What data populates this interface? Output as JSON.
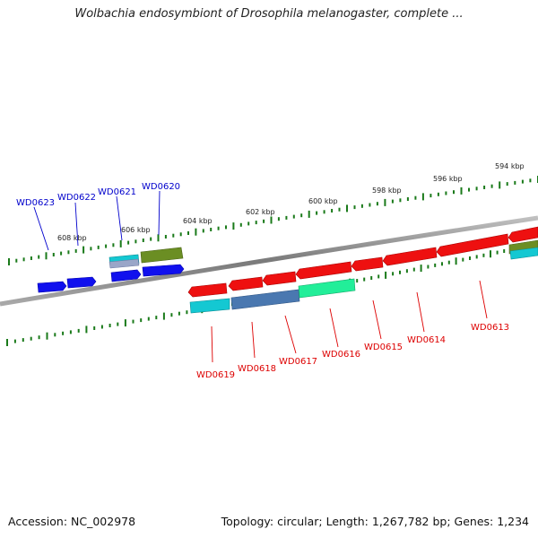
{
  "title": "Wolbachia endosymbiont of Drosophila melanogaster, complete ...",
  "footer": {
    "accession": "Accession: NC_002978",
    "summary": "Topology: circular; Length: 1,267,782 bp; Genes: 1,234"
  },
  "colors": {
    "backbone": "#808080",
    "tick": "#1a7a1a",
    "forward_label": "#0000cc",
    "reverse_label": "#dd0000",
    "blue_gene": "#1010ee",
    "red_gene": "#ee1010",
    "cyan_gene": "#14c8d2",
    "olive_gene": "#6b8e23",
    "steel_gene": "#4a78b0",
    "spring_gene": "#22ee99"
  },
  "kbp_labels": [
    "608 kbp",
    "606 kbp",
    "604 kbp",
    "602 kbp",
    "600 kbp",
    "598 kbp",
    "596 kbp",
    "594 kbp"
  ],
  "forward_gene_labels": [
    "WD0623",
    "WD0622",
    "WD0621",
    "WD0620"
  ],
  "reverse_gene_labels": [
    "WD0619",
    "WD0618",
    "WD0617",
    "WD0616",
    "WD0615",
    "WD0614",
    "WD0613"
  ]
}
